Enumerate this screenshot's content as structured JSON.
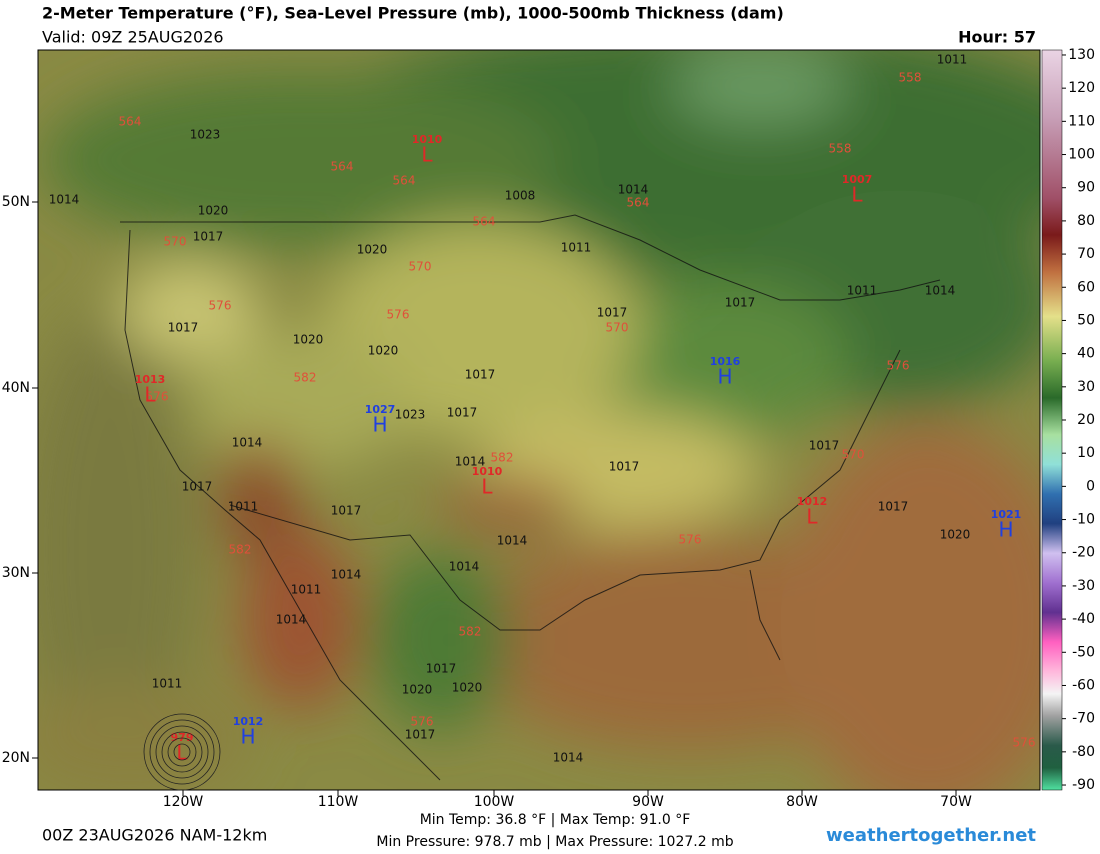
{
  "header": {
    "title": "2-Meter Temperature (°F), Sea-Level Pressure (mb), 1000-500mb Thickness (dam)",
    "valid": "Valid: 09Z 25AUG2026",
    "hour": "Hour: 57"
  },
  "colorbar": {
    "lim": [
      131.5,
      -91.5
    ],
    "ticks": [
      130,
      120,
      110,
      100,
      90,
      80,
      70,
      60,
      50,
      40,
      30,
      20,
      10,
      0,
      -10,
      -20,
      -30,
      -40,
      -50,
      -60,
      -70,
      -80,
      -90
    ]
  },
  "lat_labels": [
    "50N",
    "40N",
    "30N",
    "20N"
  ],
  "lon_labels": [
    "120W",
    "110W",
    "100W",
    "90W",
    "80W",
    "70W"
  ],
  "centers": [
    {
      "letter": "L",
      "value": "1010"
    },
    {
      "letter": "L",
      "value": "1007"
    },
    {
      "letter": "H",
      "value": "1016"
    },
    {
      "letter": "H",
      "value": "1027"
    },
    {
      "letter": "L",
      "value": "1013"
    },
    {
      "letter": "L",
      "value": "1010"
    },
    {
      "letter": "L",
      "value": "1012"
    },
    {
      "letter": "H",
      "value": "1021"
    },
    {
      "letter": "H",
      "value": "1012"
    },
    {
      "letter": "L",
      "value": "979"
    }
  ],
  "isobar_labels": [
    "1011",
    "1023",
    "1014",
    "1008",
    "1020",
    "1017",
    "1020",
    "1011",
    "1017",
    "1011",
    "1014",
    "1017",
    "1020",
    "1020",
    "1017",
    "1017",
    "1017",
    "1023",
    "1014",
    "1017",
    "1017",
    "1014",
    "1017",
    "1011",
    "1017",
    "1014",
    "1017",
    "1020",
    "1014",
    "1014",
    "1011",
    "1014",
    "1011",
    "1017",
    "1020",
    "1020",
    "1017",
    "1014",
    "1014"
  ],
  "thickness_labels": [
    "564",
    "564",
    "564",
    "564",
    "564",
    "558",
    "558",
    "570",
    "570",
    "576",
    "576",
    "570",
    "582",
    "576",
    "582",
    "582",
    "576",
    "582",
    "576",
    "576",
    "576",
    "570"
  ],
  "footer": {
    "run": "00Z 23AUG2026 NAM-12km",
    "temps": "Min Temp:  36.8 °F | Max Temp:  91.0 °F",
    "pressures": "Min Pressure: 978.7 mb | Max Pressure: 1027.2 mb",
    "site": "weathertogether.net"
  }
}
